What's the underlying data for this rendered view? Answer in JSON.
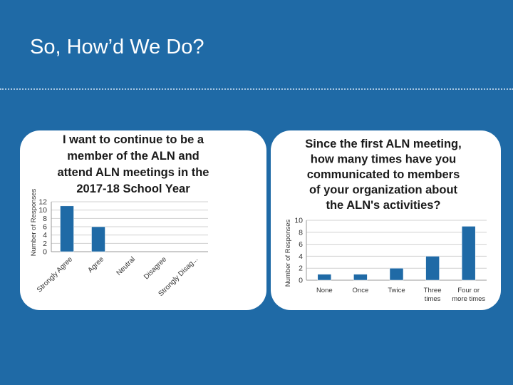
{
  "slide": {
    "title": "So, How’d We Do?",
    "background_color": "#1f6aa6",
    "panel_color": "#ffffff"
  },
  "chart_data": [
    {
      "type": "bar",
      "title_lines": [
        "I want to continue to be a",
        "member of the ALN and",
        "attend ALN meetings in the",
        "2017-18 School Year"
      ],
      "ylabel": "Number of Responses",
      "xlabel": "",
      "categories": [
        "Strongly Agree",
        "Agree",
        "Neutral",
        "Disagree",
        "Strongly Disag..."
      ],
      "values": [
        11,
        6,
        0,
        0,
        0
      ],
      "yticks": [
        0,
        2,
        4,
        6,
        8,
        10,
        12
      ],
      "ylim": [
        0,
        12
      ],
      "grid": true,
      "bar_color": "#1f6aa6"
    },
    {
      "type": "bar",
      "title_lines": [
        "Since the first ALN meeting,",
        "how many times have you",
        "communicated to members",
        "of your organization about",
        "the ALN's activities?"
      ],
      "ylabel": "Number of Responses",
      "xlabel": "",
      "categories": [
        [
          "None"
        ],
        [
          "Once"
        ],
        [
          "Twice"
        ],
        [
          "Three",
          "times"
        ],
        [
          "Four or",
          "more times"
        ]
      ],
      "values": [
        1,
        1,
        2,
        4,
        9
      ],
      "yticks": [
        0,
        2,
        4,
        6,
        8,
        10
      ],
      "ylim": [
        0,
        10
      ],
      "grid": true,
      "bar_color": "#1f6aa6"
    }
  ]
}
